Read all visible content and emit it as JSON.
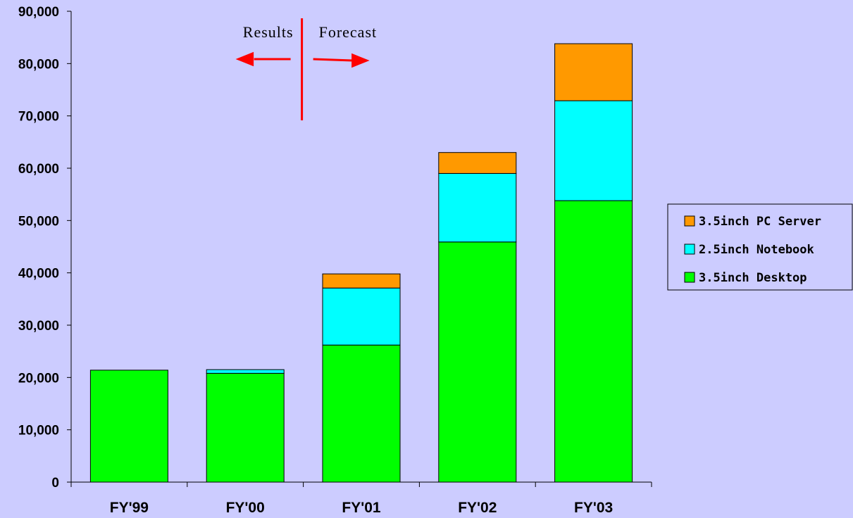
{
  "chart_data": {
    "type": "bar",
    "stacked": true,
    "categories": [
      "FY'99",
      "FY'00",
      "FY'01",
      "FY'02",
      "FY'03"
    ],
    "series": [
      {
        "name": "3.5inch Desktop",
        "color": "#00ff00",
        "values": [
          21400,
          20800,
          26200,
          45900,
          53800
        ]
      },
      {
        "name": "2.5inch Notebook",
        "color": "#00ffff",
        "values": [
          0,
          700,
          10900,
          13100,
          19100
        ]
      },
      {
        "name": "3.5inch PC Server",
        "color": "#ff9900",
        "values": [
          0,
          0,
          2700,
          4000,
          10900
        ]
      }
    ],
    "ylim": [
      0,
      90000
    ],
    "yticks": [
      0,
      10000,
      20000,
      30000,
      40000,
      50000,
      60000,
      70000,
      80000,
      90000
    ],
    "ytick_labels": [
      "0",
      "10,000",
      "20,000",
      "30,000",
      "40,000",
      "50,000",
      "60,000",
      "70,000",
      "80,000",
      "90,000"
    ],
    "grid": false,
    "legend_position": "right",
    "legend_order": [
      "3.5inch PC Server",
      "2.5inch Notebook",
      "3.5inch Desktop"
    ],
    "annotations": {
      "left_text": "Results",
      "right_text": "Forecast",
      "divider_after_category": "FY'00",
      "arrow_color": "#ff0000"
    },
    "title": "",
    "xlabel": "",
    "ylabel": ""
  }
}
